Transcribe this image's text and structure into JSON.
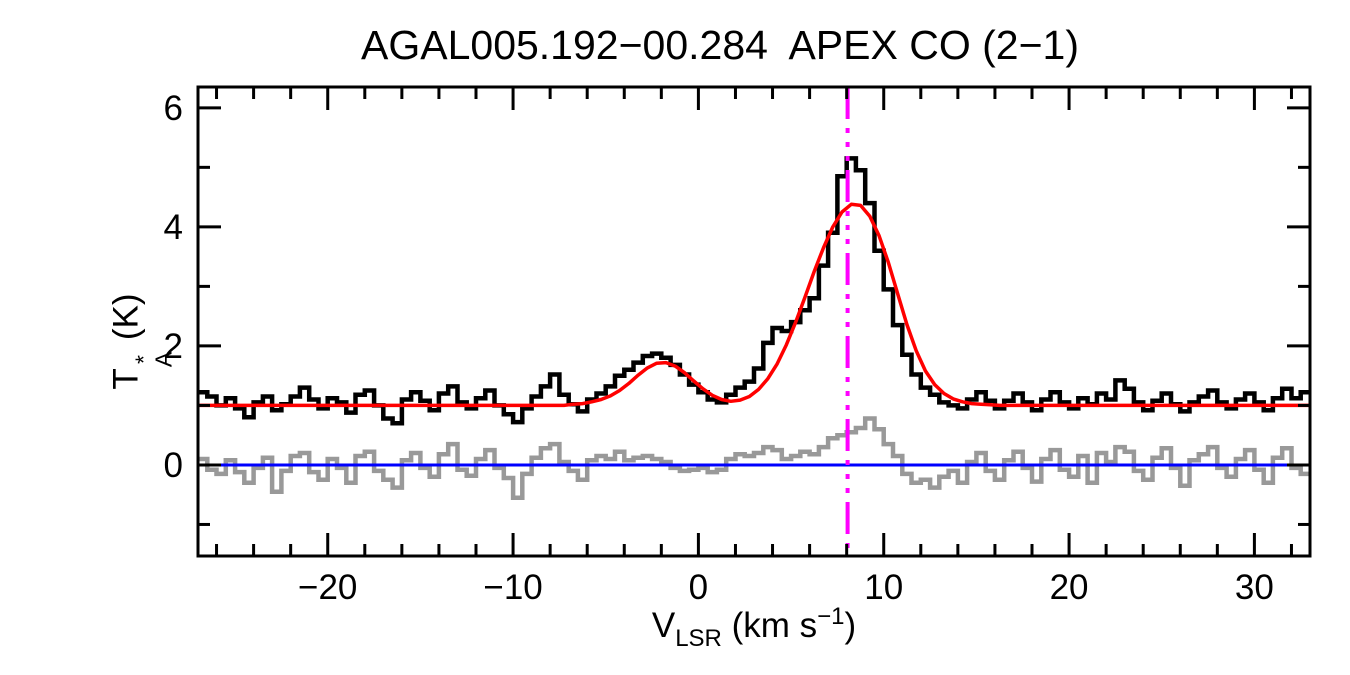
{
  "title": "AGAL005.192−00.284  APEX CO (2−1)",
  "colors": {
    "background": "#ffffff",
    "frame": "#000000",
    "spectrum": "#000000",
    "fit": "#ff0000",
    "residual": "#999999",
    "zero_baseline": "#0000ff",
    "vlsr_marker": "#ff00ff"
  },
  "axes": {
    "x": {
      "label_prefix": "V",
      "label_sub": "LSR",
      "label_unit_pre": " (km s",
      "label_unit_sup": "−1",
      "label_unit_post": ")",
      "range": [
        -27,
        33
      ],
      "major_ticks": [
        {
          "value": -20,
          "label": "−20"
        },
        {
          "value": -10,
          "label": "−10"
        },
        {
          "value": 0,
          "label": "0"
        },
        {
          "value": 10,
          "label": "10"
        },
        {
          "value": 20,
          "label": "20"
        },
        {
          "value": 30,
          "label": "30"
        }
      ],
      "minor_tick_step": 2
    },
    "y": {
      "label_prefix": "T",
      "label_sup": "*",
      "label_sub": "A",
      "label_unit": " (K)",
      "range": [
        -1.53,
        6.35
      ],
      "major_ticks": [
        {
          "value": 0,
          "label": "0"
        },
        {
          "value": 2,
          "label": "2"
        },
        {
          "value": 4,
          "label": "4"
        },
        {
          "value": 6,
          "label": "6"
        }
      ],
      "minor_ticks": [
        -1,
        1,
        3,
        5
      ]
    }
  },
  "chart_data": {
    "type": "line",
    "title": "AGAL005.192−00.284  APEX CO (2−1)",
    "xlabel": "V_LSR (km s^−1)",
    "ylabel": "T_A^* (K)",
    "xlim": [
      -27,
      33
    ],
    "ylim": [
      -1.53,
      6.35
    ],
    "grid": false,
    "legend": "none",
    "channel_width_kms": 0.5,
    "x_start": -26.75,
    "series": [
      {
        "name": "co21_spectrum",
        "style": "histogram",
        "color": "#000000",
        "line_width": 4.5,
        "values": [
          1.22,
          1.15,
          1.0,
          1.12,
          0.95,
          0.8,
          1.05,
          1.15,
          0.92,
          1.02,
          1.15,
          1.3,
          1.1,
          0.95,
          1.12,
          1.05,
          0.88,
          1.18,
          1.25,
          1.0,
          0.78,
          0.7,
          1.1,
          1.22,
          1.08,
          0.92,
          1.2,
          1.32,
          1.05,
          0.95,
          1.12,
          1.25,
          1.0,
          0.85,
          0.72,
          0.95,
          1.15,
          1.32,
          1.52,
          1.18,
          1.02,
          0.9,
          1.1,
          1.2,
          1.32,
          1.5,
          1.6,
          1.72,
          1.83,
          1.87,
          1.8,
          1.68,
          1.52,
          1.35,
          1.22,
          1.1,
          1.05,
          1.18,
          1.3,
          1.4,
          1.62,
          2.05,
          2.3,
          2.25,
          2.4,
          2.6,
          2.8,
          3.35,
          3.9,
          4.85,
          5.15,
          4.95,
          4.4,
          3.6,
          2.95,
          2.35,
          1.85,
          1.52,
          1.3,
          1.18,
          1.05,
          1.0,
          0.95,
          1.1,
          1.22,
          1.08,
          0.95,
          1.08,
          1.2,
          1.05,
          0.92,
          1.1,
          1.22,
          1.05,
          0.95,
          1.12,
          1.02,
          1.2,
          1.1,
          1.42,
          1.28,
          1.05,
          0.92,
          1.08,
          1.2,
          1.02,
          0.9,
          1.05,
          1.15,
          1.25,
          1.05,
          0.95,
          1.1,
          1.2,
          1.05,
          0.92,
          1.12,
          1.28,
          1.12,
          1.22
        ]
      },
      {
        "name": "gaussian_fit",
        "style": "smooth",
        "color": "#ff0000",
        "line_width": 3.5,
        "values": [
          1.0,
          1.0,
          1.0,
          1.0,
          1.0,
          1.0,
          1.0,
          1.0,
          1.0,
          1.0,
          1.0,
          1.0,
          1.0,
          1.0,
          1.0,
          1.0,
          1.0,
          1.0,
          1.0,
          1.0,
          1.0,
          1.0,
          1.0,
          1.0,
          1.0,
          1.0,
          1.0,
          1.0,
          1.0,
          1.0,
          1.0,
          1.0,
          1.0,
          1.0,
          1.0,
          1.0,
          1.0,
          1.0,
          1.0,
          1.0,
          1.02,
          1.03,
          1.06,
          1.1,
          1.16,
          1.25,
          1.37,
          1.51,
          1.63,
          1.71,
          1.72,
          1.66,
          1.55,
          1.41,
          1.28,
          1.17,
          1.1,
          1.07,
          1.09,
          1.15,
          1.27,
          1.45,
          1.7,
          2.02,
          2.4,
          2.82,
          3.25,
          3.65,
          4.0,
          4.25,
          4.38,
          4.36,
          4.18,
          3.85,
          3.4,
          2.88,
          2.36,
          1.92,
          1.58,
          1.35,
          1.2,
          1.11,
          1.06,
          1.03,
          1.02,
          1.01,
          1.0,
          1.0,
          1.0,
          1.0,
          1.0,
          1.0,
          1.0,
          1.0,
          1.0,
          1.0,
          1.0,
          1.0,
          1.0,
          1.0,
          1.0,
          1.0,
          1.0,
          1.0,
          1.0,
          1.0,
          1.0,
          1.0,
          1.0,
          1.0,
          1.0,
          1.0,
          1.0,
          1.0,
          1.0,
          1.0,
          1.0,
          1.0,
          1.0,
          1.0
        ]
      },
      {
        "name": "residual",
        "style": "histogram",
        "color": "#999999",
        "line_width": 4.5,
        "values": [
          0.1,
          -0.08,
          -0.15,
          0.08,
          -0.12,
          -0.3,
          -0.05,
          0.12,
          -0.45,
          -0.1,
          0.15,
          0.2,
          -0.12,
          -0.25,
          0.1,
          -0.05,
          -0.3,
          0.15,
          0.22,
          -0.1,
          -0.25,
          -0.38,
          0.08,
          0.2,
          -0.05,
          -0.2,
          0.18,
          0.35,
          -0.08,
          -0.18,
          0.1,
          0.25,
          -0.05,
          -0.22,
          -0.55,
          -0.15,
          0.12,
          0.28,
          0.35,
          0.05,
          -0.1,
          -0.25,
          0.08,
          0.15,
          0.1,
          0.22,
          0.08,
          0.12,
          0.15,
          0.1,
          0.05,
          -0.05,
          -0.1,
          -0.08,
          -0.05,
          -0.12,
          -0.08,
          0.1,
          0.18,
          0.15,
          0.2,
          0.3,
          0.25,
          0.1,
          0.15,
          0.22,
          0.18,
          0.3,
          0.45,
          0.5,
          0.55,
          0.62,
          0.78,
          0.6,
          0.35,
          0.15,
          -0.15,
          -0.3,
          -0.25,
          -0.38,
          -0.2,
          -0.1,
          -0.3,
          0.05,
          0.2,
          -0.1,
          -0.25,
          0.08,
          0.22,
          -0.05,
          -0.28,
          0.1,
          0.25,
          -0.08,
          -0.2,
          0.15,
          -0.3,
          0.2,
          0.05,
          0.3,
          0.22,
          -0.1,
          -0.25,
          0.12,
          0.28,
          -0.05,
          -0.35,
          0.08,
          0.18,
          0.3,
          -0.05,
          -0.2,
          0.1,
          0.25,
          -0.08,
          -0.3,
          0.12,
          0.28,
          -0.05,
          -0.15
        ]
      }
    ],
    "reference_lines": [
      {
        "name": "zero-baseline",
        "orientation": "horizontal",
        "value": 0,
        "color": "#0000ff",
        "style": "solid",
        "line_width": 3
      },
      {
        "name": "vlsr-marker",
        "orientation": "vertical",
        "value": 8.05,
        "color": "#ff00ff",
        "style": "dash-dot-dot-dot",
        "line_width": 4
      }
    ]
  }
}
